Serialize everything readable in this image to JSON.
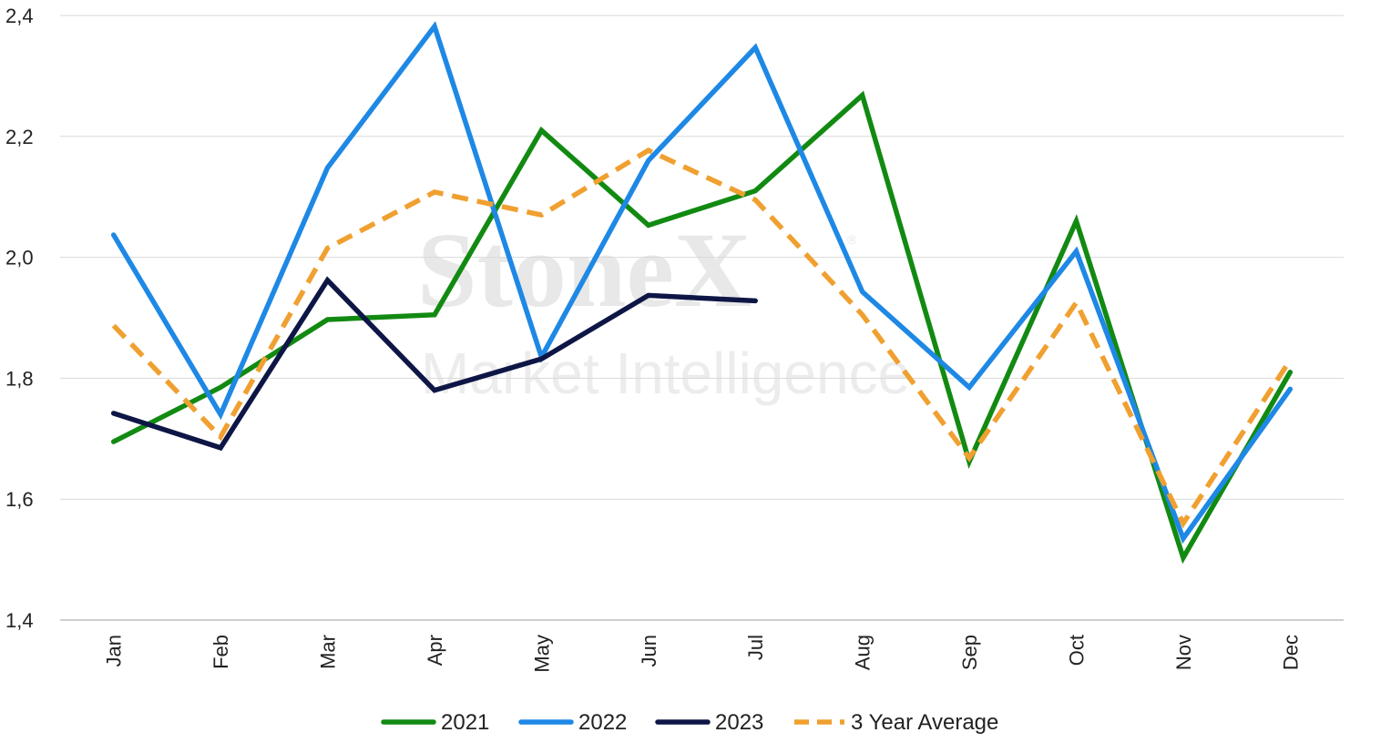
{
  "watermark": {
    "line1": "StoneX",
    "mark": "®",
    "line2": "Market Intelligence"
  },
  "chart_data": {
    "type": "line",
    "title": "",
    "xlabel": "",
    "ylabel": "",
    "categories": [
      "Jan",
      "Feb",
      "Mar",
      "Apr",
      "May",
      "Jun",
      "Jul",
      "Aug",
      "Sep",
      "Oct",
      "Nov",
      "Dec"
    ],
    "ylim": [
      1.4,
      2.4
    ],
    "yticks": [
      1.4,
      1.6,
      1.8,
      2.0,
      2.2,
      2.4
    ],
    "ytick_labels": [
      "1,4",
      "1,6",
      "1,8",
      "2,0",
      "2,2",
      "2,4"
    ],
    "grid": "horizontal",
    "legend_position": "bottom",
    "series": [
      {
        "name": "2021",
        "color": "#128a12",
        "dashed": false,
        "values": [
          1.695,
          1.785,
          1.897,
          1.905,
          2.21,
          2.053,
          2.11,
          2.268,
          1.662,
          2.06,
          1.503,
          1.81
        ]
      },
      {
        "name": "2022",
        "color": "#1e88e5",
        "dashed": false,
        "values": [
          2.037,
          1.74,
          2.148,
          2.382,
          1.835,
          2.16,
          2.347,
          1.943,
          1.785,
          2.01,
          1.535,
          1.782
        ]
      },
      {
        "name": "2023",
        "color": "#0e1646",
        "dashed": false,
        "values": [
          1.742,
          1.685,
          1.962,
          1.78,
          1.832,
          1.937,
          1.928,
          null,
          null,
          null,
          null,
          null
        ]
      },
      {
        "name": "3 Year Average",
        "color": "#f0a030",
        "dashed": true,
        "values": [
          1.887,
          1.703,
          2.015,
          2.108,
          2.07,
          2.177,
          2.095,
          1.905,
          1.668,
          1.925,
          1.56,
          1.83
        ]
      }
    ]
  }
}
